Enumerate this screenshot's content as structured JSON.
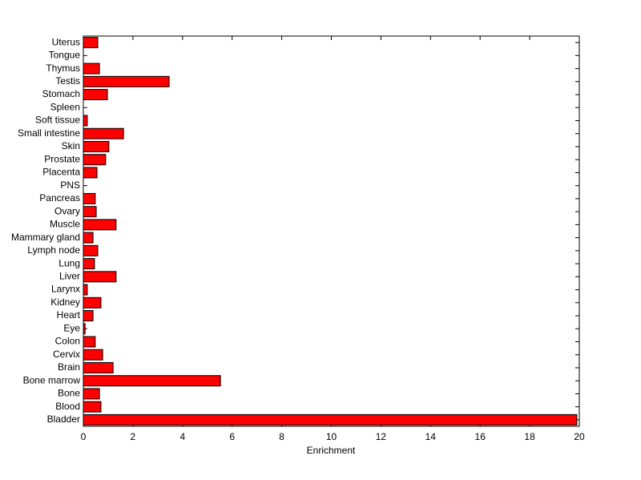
{
  "chart_data": {
    "type": "barh",
    "xlabel": "Enrichment",
    "categories": [
      "Bladder",
      "Blood",
      "Bone",
      "Bone marrow",
      "Brain",
      "Cervix",
      "Colon",
      "Eye",
      "Heart",
      "Kidney",
      "Larynx",
      "Liver",
      "Lung",
      "Lymph node",
      "Mammary gland",
      "Muscle",
      "Ovary",
      "Pancreas",
      "PNS",
      "Placenta",
      "Prostate",
      "Skin",
      "Small intestine",
      "Soft tissue",
      "Spleen",
      "Stomach",
      "Testis",
      "Thymus",
      "Tongue",
      "Uterus"
    ],
    "values": [
      19.9,
      0.71,
      0.65,
      5.53,
      1.2,
      0.78,
      0.48,
      0.07,
      0.39,
      0.71,
      0.16,
      1.32,
      0.45,
      0.58,
      0.39,
      1.32,
      0.52,
      0.48,
      0,
      0.55,
      0.9,
      1.03,
      1.62,
      0.16,
      0,
      0.97,
      3.46,
      0.65,
      0,
      0.58
    ],
    "color": "#ff0000",
    "xlim": [
      0,
      20
    ],
    "xticks": [
      0,
      2,
      4,
      6,
      8,
      10,
      12,
      14,
      16,
      18,
      20
    ]
  }
}
